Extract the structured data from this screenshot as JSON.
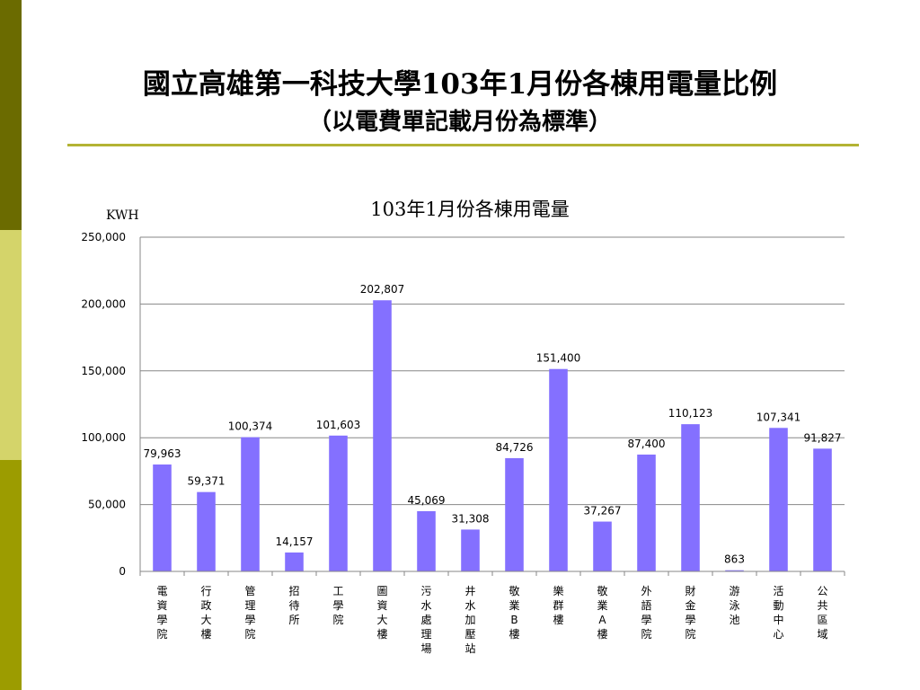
{
  "slide": {
    "title_line1": "國立高雄第一科技大學103年1月份各棟用電量比例",
    "title_line2": "（以電費單記載月份為標準）",
    "accent_colors": [
      "#6b6b00",
      "#d4d46a",
      "#9c9c00",
      "#b3b334"
    ]
  },
  "chart_data": {
    "type": "bar",
    "title": "103年1月份各棟用電量",
    "ylabel": "KWH",
    "xlabel": "",
    "ylim": [
      0,
      250000
    ],
    "yticks": [
      "0",
      "50,000",
      "100,000",
      "150,000",
      "200,000",
      "250,000"
    ],
    "grid": true,
    "bar_color": "#8470ff",
    "categories": [
      "電資學院",
      "行政大樓",
      "管理學院",
      "招待所",
      "工學院",
      "圖資大樓",
      "污水處理場",
      "井水加壓站",
      "敬業B樓",
      "樂群樓",
      "敬業A樓",
      "外語學院",
      "財金學院",
      "游泳池",
      "活動中心",
      "公共區域"
    ],
    "values": [
      79963,
      59371,
      100374,
      14157,
      101603,
      202807,
      45069,
      31308,
      84726,
      151400,
      37267,
      87400,
      110123,
      863,
      107341,
      91827
    ],
    "data_labels": [
      "79,963",
      "59,371",
      "100,374",
      "14,157",
      "101,603",
      "202,807",
      "45,069",
      "31,308",
      "84,726",
      "151,400",
      "37,267",
      "87,400",
      "110,123",
      "863",
      "107,341",
      "91,827"
    ]
  }
}
